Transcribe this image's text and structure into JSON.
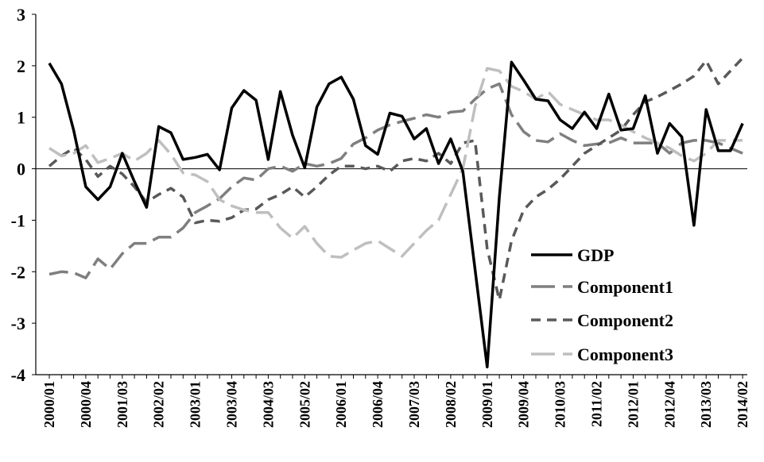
{
  "chart_data": {
    "type": "line",
    "title": "",
    "xlabel": "",
    "ylabel": "",
    "ylim": [
      -4,
      3
    ],
    "yticks": [
      3,
      2,
      1,
      0,
      -1,
      -2,
      -3,
      -4
    ],
    "x_tick_labels": [
      "2000/01",
      "2000/04",
      "2001/03",
      "2002/02",
      "2003/01",
      "2003/04",
      "2004/03",
      "2005/02",
      "2006/01",
      "2006/04",
      "2007/03",
      "2008/02",
      "2009/01",
      "2009/04",
      "2010/03",
      "2011/02",
      "2012/01",
      "2012/04",
      "2013/03",
      "2014/02"
    ],
    "quarters_count": 58,
    "legend_position": "lower-right",
    "series": [
      {
        "name": "GDP",
        "color": "#000000",
        "dash": "solid",
        "values": [
          2.05,
          1.65,
          0.75,
          -0.35,
          -0.6,
          -0.35,
          0.3,
          -0.25,
          -0.75,
          0.82,
          0.7,
          0.18,
          0.22,
          0.28,
          -0.02,
          1.18,
          1.52,
          1.33,
          0.18,
          1.5,
          0.65,
          0.02,
          1.2,
          1.65,
          1.78,
          1.35,
          0.45,
          0.28,
          1.08,
          1.02,
          0.58,
          0.78,
          0.1,
          0.58,
          -0.05,
          -1.95,
          -3.85,
          -0.55,
          2.07,
          1.72,
          1.35,
          1.32,
          0.95,
          0.78,
          1.1,
          0.78,
          1.45,
          0.75,
          0.78,
          1.42,
          0.3,
          0.88,
          0.62,
          -1.1,
          1.15,
          0.35,
          0.35,
          0.88
        ]
      },
      {
        "name": "Component1",
        "color": "#7f7f7f",
        "dash": "long",
        "values": [
          -2.05,
          -2.0,
          -2.02,
          -2.12,
          -1.75,
          -1.95,
          -1.65,
          -1.45,
          -1.45,
          -1.33,
          -1.33,
          -1.15,
          -0.85,
          -0.72,
          -0.58,
          -0.35,
          -0.18,
          -0.22,
          0.0,
          0.05,
          -0.05,
          0.1,
          0.05,
          0.1,
          0.2,
          0.48,
          0.6,
          0.75,
          0.85,
          0.92,
          0.98,
          1.05,
          1.0,
          1.1,
          1.12,
          1.35,
          1.55,
          1.65,
          1.05,
          0.72,
          0.55,
          0.52,
          0.68,
          0.55,
          0.45,
          0.48,
          0.5,
          0.6,
          0.5,
          0.5,
          0.5,
          0.3,
          0.5,
          0.55,
          0.55,
          0.5,
          0.4,
          0.3
        ]
      },
      {
        "name": "Component2",
        "color": "#595959",
        "dash": "short",
        "values": [
          0.05,
          0.25,
          0.4,
          0.18,
          -0.15,
          0.05,
          -0.1,
          -0.35,
          -0.65,
          -0.5,
          -0.38,
          -0.55,
          -1.05,
          -1.0,
          -1.02,
          -0.95,
          -0.8,
          -0.78,
          -0.6,
          -0.5,
          -0.35,
          -0.55,
          -0.35,
          -0.12,
          0.05,
          0.05,
          0.0,
          0.05,
          -0.05,
          0.15,
          0.2,
          0.15,
          0.3,
          0.1,
          0.5,
          0.55,
          -1.55,
          -2.55,
          -1.4,
          -0.8,
          -0.55,
          -0.4,
          -0.2,
          0.05,
          0.3,
          0.45,
          0.6,
          0.75,
          1.05,
          1.3,
          1.4,
          1.52,
          1.65,
          1.8,
          2.1,
          1.65,
          1.9,
          2.15
        ]
      },
      {
        "name": "Component3",
        "color": "#bfbfbf",
        "dash": "long",
        "values": [
          0.4,
          0.25,
          0.3,
          0.45,
          0.12,
          0.2,
          0.3,
          0.15,
          0.3,
          0.55,
          0.28,
          -0.08,
          -0.12,
          -0.25,
          -0.6,
          -0.72,
          -0.8,
          -0.85,
          -0.85,
          -1.15,
          -1.35,
          -1.12,
          -1.45,
          -1.7,
          -1.72,
          -1.58,
          -1.45,
          -1.4,
          -1.55,
          -1.7,
          -1.45,
          -1.2,
          -1.0,
          -0.5,
          0.0,
          1.2,
          1.95,
          1.9,
          1.6,
          1.5,
          1.35,
          1.5,
          1.25,
          1.15,
          1.05,
          0.95,
          0.95,
          0.85,
          0.72,
          0.6,
          0.5,
          0.4,
          0.25,
          0.15,
          0.3,
          0.55,
          0.55,
          0.55
        ]
      }
    ]
  }
}
